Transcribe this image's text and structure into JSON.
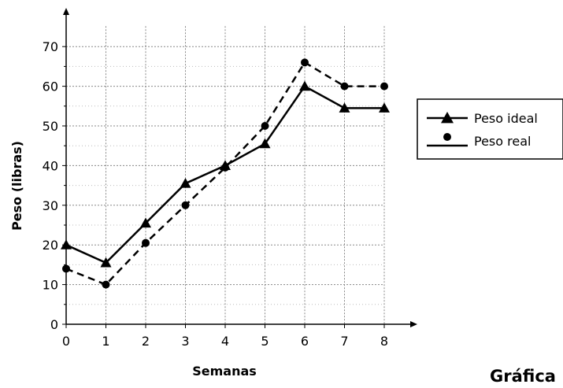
{
  "caption": "Gráfica",
  "chart_data": {
    "type": "line",
    "title": "",
    "xlabel": "Semanas",
    "ylabel": "Peso (libras)",
    "x": [
      0,
      1,
      2,
      3,
      4,
      5,
      6,
      7,
      8
    ],
    "xlim": [
      0,
      8
    ],
    "ylim": [
      0,
      70
    ],
    "yticks": [
      0,
      10,
      20,
      30,
      40,
      50,
      60,
      70
    ],
    "xticks": [
      0,
      1,
      2,
      3,
      4,
      5,
      6,
      7,
      8
    ],
    "grid": true,
    "legend_position": "right",
    "series": [
      {
        "name": "Peso ideal",
        "values": [
          20,
          15.5,
          25.5,
          35.5,
          40,
          45.5,
          60,
          54.5,
          54.5
        ],
        "marker": "triangle",
        "line_style": "solid",
        "color": "#000000"
      },
      {
        "name": "Peso real",
        "values": [
          14,
          10,
          20.5,
          30,
          39.5,
          50,
          66,
          60,
          60
        ],
        "marker": "circle",
        "line_style": "dashed",
        "color": "#000000"
      }
    ]
  }
}
